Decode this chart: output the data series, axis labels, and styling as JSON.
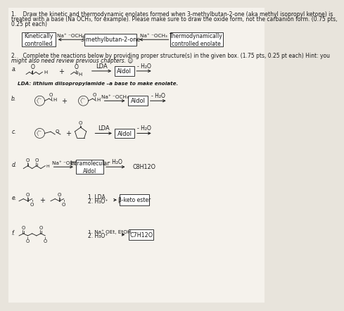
{
  "bg_color": "#e8e4dc",
  "paper_color": "#f5f2ec",
  "text_color": "#1a1a1a",
  "q1_text_line1": "1.    Draw the kinetic and thermodynamic enolates formed when 3-methylbutan-2-one (aka methyl isopropyl ketone) is",
  "q1_text_line2": "treated with a base (Na OCH₃, for example). Please make sure to draw the oxide form, not the carbanion form. (0.75 pts,",
  "q1_text_line3": "0.25 pt each)",
  "q1_box1_text": "Kinetically\ncontrolled",
  "q1_center_text": "3-methylbutan-2-one",
  "q1_box2_text": "Thermodynamically\ncontrolled enolate",
  "q1_reagent1": "Na⁺ ⁻OCH₃",
  "q1_reagent2": "Na⁺ ⁻OCH₃",
  "q2_text_line1": "2.    Complete the reactions below by providing proper structure(s) in the given box. (1.75 pts, 0.25 pt each) Hint: you",
  "q2_text_line2": "might also need review previous chapters. ☺",
  "lda_note": "LDA: lithium diisopropylamide –a base to make enolate.",
  "aldol": "Aldol",
  "minus_h2o": "- H₂O",
  "lda": "LDA",
  "na_och3": "Na⁺ ⁻OCH₃",
  "na_oet": "Na⁺ ⁻OEt",
  "intramol": "Intramolecular\nAldol",
  "c8h12o": "C8H12O",
  "reagent_e1": "1. LDA",
  "reagent_e2": "2. H₃O⁺",
  "beta_keto": "β-keto ester",
  "reagent_f1": "1. Na⁺ OEt, EtOH",
  "reagent_f2": "2. H₃O⁺",
  "c7h12o": "C7H12O"
}
